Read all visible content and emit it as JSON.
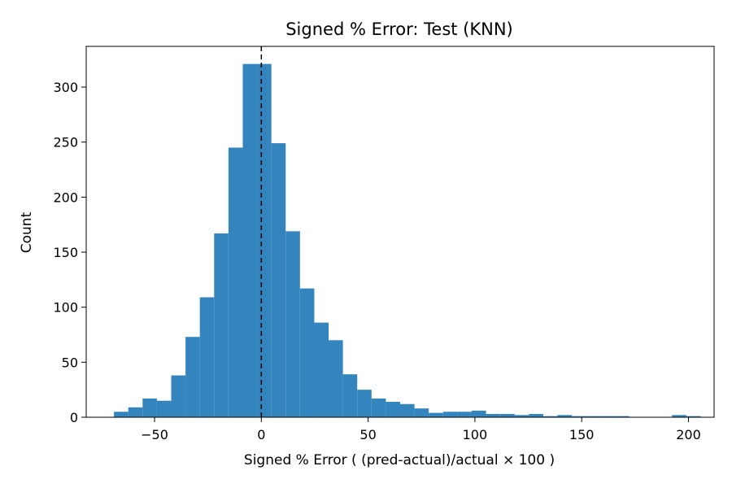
{
  "chart_data": {
    "type": "bar",
    "title": "Signed % Error: Test (KNN)",
    "xlabel": "Signed % Error ( (pred-actual)/actual × 100 )",
    "ylabel": "Count",
    "xlim": [
      -82,
      212
    ],
    "ylim": [
      0,
      337
    ],
    "x_ticks": [
      -50,
      0,
      50,
      100,
      150,
      200
    ],
    "x_tick_labels": [
      "−50",
      "0",
      "50",
      "100",
      "150",
      "200"
    ],
    "y_ticks": [
      0,
      50,
      100,
      150,
      200,
      250,
      300
    ],
    "y_tick_labels": [
      "0",
      "50",
      "100",
      "150",
      "200",
      "250",
      "300"
    ],
    "bin_edges": [
      -69,
      -62.3,
      -55.6,
      -48.9,
      -42.2,
      -35.5,
      -28.8,
      -22.1,
      -15.4,
      -8.7,
      -2.0,
      4.7,
      11.4,
      18.1,
      24.8,
      31.5,
      38.2,
      44.9,
      51.6,
      58.3,
      65.0,
      71.7,
      78.4,
      85.1,
      91.8,
      98.5,
      105.2,
      111.9,
      118.6,
      125.3,
      132.0,
      138.7,
      145.4,
      152.1,
      158.8,
      165.5,
      172.2,
      178.9,
      185.6,
      192.3,
      199.0,
      205.7
    ],
    "counts": [
      5,
      9,
      17,
      15,
      38,
      73,
      109,
      167,
      245,
      321,
      321,
      249,
      169,
      117,
      86,
      70,
      39,
      25,
      17,
      14,
      12,
      8,
      4,
      5,
      5,
      6,
      3,
      3,
      2,
      3,
      1,
      2,
      1,
      1,
      1,
      1,
      0,
      0,
      0,
      2,
      1
    ],
    "reference_line": {
      "x": 0,
      "style": "dashed",
      "color": "#000000"
    },
    "bar_color": "#3485bd",
    "grid": false,
    "legend": false
  }
}
